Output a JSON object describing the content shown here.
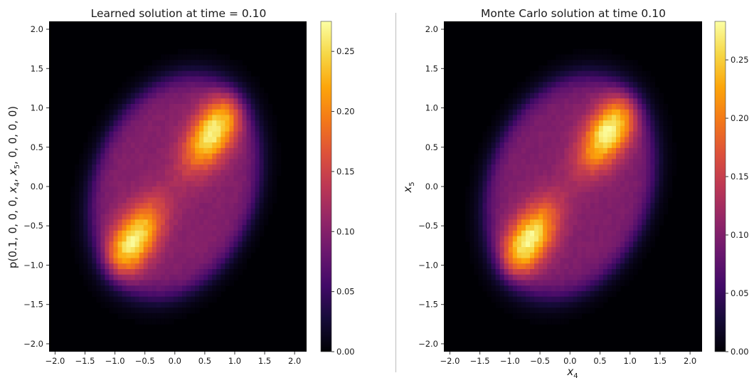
{
  "chart_data": [
    {
      "type": "heatmap",
      "title": "Learned solution at time = 0.10",
      "xlabel": "",
      "ylabel": "p(0.1, 0, 0, 0, x_4, x_5, 0, 0, 0, 0)",
      "ylabel_parts": {
        "lead": "p(0.1, 0, 0, 0, ",
        "v1": "x",
        "s1": "4",
        "sep": ", ",
        "v2": "x",
        "s2": "5",
        "tail": ", 0, 0, 0, 0)"
      },
      "xlim": [
        -2.1,
        2.2
      ],
      "ylim": [
        -2.1,
        2.1
      ],
      "xticks": [
        "−2.0",
        "−1.5",
        "−1.0",
        "−0.5",
        "0.0",
        "0.5",
        "1.0",
        "1.5",
        "2.0"
      ],
      "yticks": [
        "−2.0",
        "−1.5",
        "−1.0",
        "−0.5",
        "0.0",
        "0.5",
        "1.0",
        "1.5",
        "2.0"
      ],
      "colorbar": {
        "min": 0.0,
        "max": 0.275,
        "ticks": [
          "0.00",
          "0.05",
          "0.10",
          "0.15",
          "0.20",
          "0.25"
        ]
      },
      "colormap": "inferno",
      "peaks": [
        {
          "x": 0.65,
          "y": 0.7,
          "density": 0.27
        },
        {
          "x": -0.7,
          "y": -0.7,
          "density": 0.27
        }
      ],
      "background_density": 0.1
    },
    {
      "type": "heatmap",
      "title": "Monte Carlo solution at time 0.10",
      "xlabel": "x_4",
      "ylabel": "x_5",
      "xlabel_parts": {
        "v": "x",
        "s": "4"
      },
      "ylabel_parts": {
        "v": "x",
        "s": "5"
      },
      "xlim": [
        -2.1,
        2.2
      ],
      "ylim": [
        -2.1,
        2.1
      ],
      "xticks": [
        "−2.0",
        "−1.5",
        "−1.0",
        "−0.5",
        "0.0",
        "0.5",
        "1.0",
        "1.5",
        "2.0"
      ],
      "yticks": [
        "−2.0",
        "−1.5",
        "−1.0",
        "−0.5",
        "0.0",
        "0.5",
        "1.0",
        "1.5",
        "2.0"
      ],
      "colorbar": {
        "min": 0.0,
        "max": 0.283,
        "ticks": [
          "0.00",
          "0.05",
          "0.10",
          "0.15",
          "0.20",
          "0.25"
        ]
      },
      "colormap": "inferno",
      "peaks": [
        {
          "x": 0.65,
          "y": 0.7,
          "density": 0.28
        },
        {
          "x": -0.7,
          "y": -0.7,
          "density": 0.28
        }
      ],
      "background_density": 0.1
    }
  ]
}
